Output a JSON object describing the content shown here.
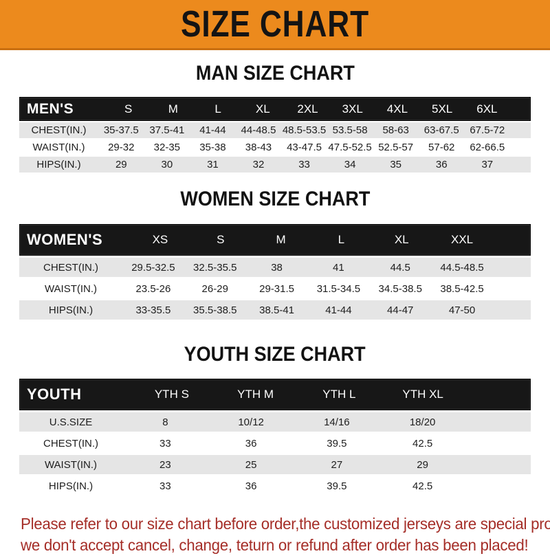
{
  "banner": {
    "title": "SIZE CHART",
    "bg_color": "#EC8A1D"
  },
  "colors": {
    "header_bar": "#171717",
    "row_stripe": "#E5E5E5",
    "note_red": "#A52E28"
  },
  "tables": [
    {
      "id": "men",
      "heading": "MAN SIZE CHART",
      "header_label": "MEN'S",
      "columns": [
        "S",
        "M",
        "L",
        "XL",
        "2XL",
        "3XL",
        "4XL",
        "5XL",
        "6XL"
      ],
      "rows": [
        {
          "label": "CHEST(IN.)",
          "values": [
            "35-37.5",
            "37.5-41",
            "41-44",
            "44-48.5",
            "48.5-53.5",
            "53.5-58",
            "58-63",
            "63-67.5",
            "67.5-72"
          ]
        },
        {
          "label": "WAIST(IN.)",
          "values": [
            "29-32",
            "32-35",
            "35-38",
            "38-43",
            "43-47.5",
            "47.5-52.5",
            "52.5-57",
            "57-62",
            "62-66.5"
          ]
        },
        {
          "label": "HIPS(IN.)",
          "values": [
            "29",
            "30",
            "31",
            "32",
            "33",
            "34",
            "35",
            "36",
            "37"
          ]
        }
      ]
    },
    {
      "id": "women",
      "heading": "WOMEN SIZE CHART",
      "header_label": "WOMEN'S",
      "columns": [
        "XS",
        "S",
        "M",
        "L",
        "XL",
        "XXL"
      ],
      "rows": [
        {
          "label": "CHEST(IN.)",
          "values": [
            "29.5-32.5",
            "32.5-35.5",
            "38",
            "41",
            "44.5",
            "44.5-48.5"
          ]
        },
        {
          "label": "WAIST(IN.)",
          "values": [
            "23.5-26",
            "26-29",
            "29-31.5",
            "31.5-34.5",
            "34.5-38.5",
            "38.5-42.5"
          ]
        },
        {
          "label": "HIPS(IN.)",
          "values": [
            "33-35.5",
            "35.5-38.5",
            "38.5-41",
            "41-44",
            "44-47",
            "47-50"
          ]
        }
      ]
    },
    {
      "id": "youth",
      "heading": "YOUTH SIZE CHART",
      "header_label": "YOUTH",
      "columns": [
        "YTH S",
        "YTH M",
        "YTH L",
        "YTH XL"
      ],
      "rows": [
        {
          "label": "U.S.SIZE",
          "values": [
            "8",
            "10/12",
            "14/16",
            "18/20"
          ]
        },
        {
          "label": "CHEST(IN.)",
          "values": [
            "33",
            "36",
            "39.5",
            "42.5"
          ]
        },
        {
          "label": "WAIST(IN.)",
          "values": [
            "23",
            "25",
            "27",
            "29"
          ]
        },
        {
          "label": "HIPS(IN.)",
          "values": [
            "33",
            "36",
            "39.5",
            "42.5"
          ]
        }
      ]
    }
  ],
  "note": {
    "line1": "Please refer to our size chart before order,the customized jerseys are special products,",
    "line2": "we don't accept cancel, change, teturn or refund after order has been placed!"
  }
}
